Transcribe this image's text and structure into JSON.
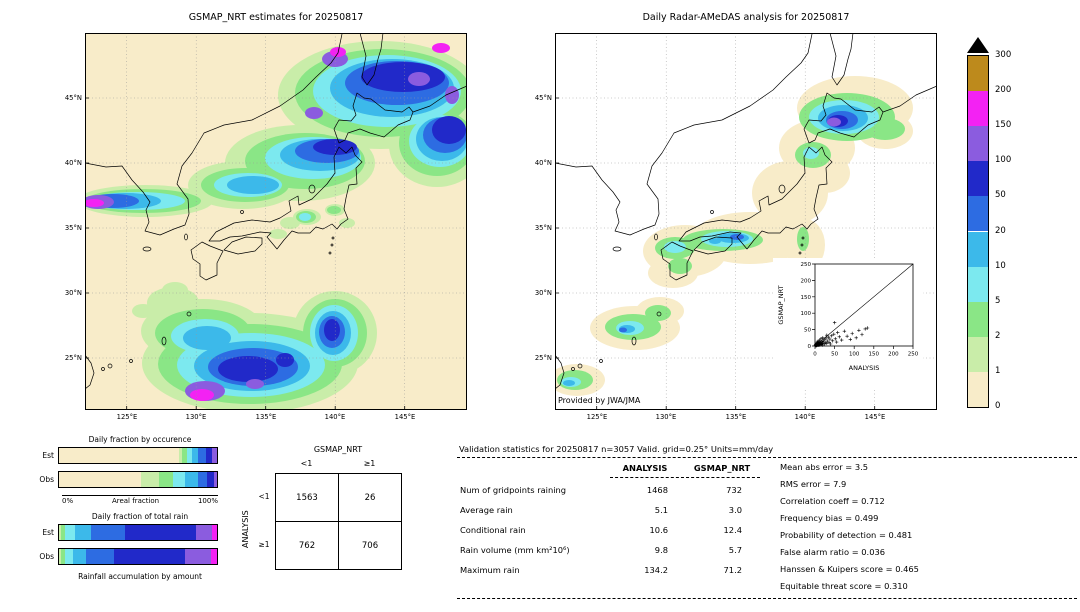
{
  "left_map": {
    "title": "GSMAP_NRT estimates for 20250817",
    "lat_ticks": [
      "45°N",
      "40°N",
      "35°N",
      "30°N",
      "25°N"
    ],
    "lon_ticks": [
      "125°E",
      "130°E",
      "135°E",
      "140°E",
      "145°E"
    ]
  },
  "right_map": {
    "title": "Daily Radar-AMeDAS analysis for 20250817",
    "credit": "Provided by JWA/JMA",
    "lat_ticks": [
      "45°N",
      "40°N",
      "35°N",
      "30°N",
      "25°N"
    ],
    "lon_ticks": [
      "125°E",
      "130°E",
      "135°E",
      "140°E",
      "145°E"
    ],
    "inset": {
      "xlabel": "ANALYSIS",
      "ylabel": "GSMAP_NRT",
      "ticks": [
        0,
        50,
        100,
        150,
        200,
        250
      ],
      "axis_max": 250
    }
  },
  "colorbar": {
    "units": "mm/day",
    "tick_labels": [
      "300",
      "200",
      "150",
      "100",
      "50",
      "20",
      "10",
      "5",
      "2",
      "1",
      "0"
    ],
    "colors_top_to_bottom": [
      "#bd8a1c",
      "#f322f3",
      "#8b5cdf",
      "#2129c9",
      "#2d6ce2",
      "#3cb9ea",
      "#7ce9ef",
      "#8ae686",
      "#c9eda9",
      "#f8ecc9"
    ],
    "overflow_color": "#000000"
  },
  "occurrence_chart": {
    "title": "Daily fraction by occurence",
    "xlabel": "Areal fraction",
    "x0_label": "0%",
    "x100_label": "100%",
    "segment_colors": [
      "#f8ecc9",
      "#c9eda9",
      "#8ae686",
      "#7ce9ef",
      "#3cb9ea",
      "#2d6ce2",
      "#2129c9",
      "#8b5cdf"
    ],
    "rows": [
      {
        "label": "Est",
        "segments": [
          76,
          2,
          3,
          3,
          4,
          5,
          4,
          3
        ]
      },
      {
        "label": "Obs",
        "segments": [
          52,
          11,
          9,
          8,
          8,
          6,
          4,
          2
        ]
      }
    ]
  },
  "totalrain_chart": {
    "title": "Daily fraction of total rain",
    "footer": "Rainfall accumulation by amount",
    "segment_colors": [
      "#c9eda9",
      "#8ae686",
      "#7ce9ef",
      "#3cb9ea",
      "#2d6ce2",
      "#2129c9",
      "#8b5cdf",
      "#f322f3"
    ],
    "rows": [
      {
        "label": "Est",
        "segments": [
          1,
          3,
          6,
          10,
          22,
          45,
          10,
          3
        ]
      },
      {
        "label": "Obs",
        "segments": [
          1,
          3,
          5,
          8,
          18,
          45,
          16,
          4
        ]
      }
    ]
  },
  "contingency": {
    "col_group": "GSMAP_NRT",
    "row_group": "ANALYSIS",
    "col_labels": [
      "<1",
      "≥1"
    ],
    "row_labels": [
      "<1",
      "≥1"
    ],
    "cells": [
      [
        "1563",
        "26"
      ],
      [
        "762",
        "706"
      ]
    ]
  },
  "validation": {
    "title": "Validation statistics for 20250817  n=3057 Valid. grid=0.25° Units=mm/day",
    "col_headers": [
      "ANALYSIS",
      "GSMAP_NRT"
    ],
    "rows": [
      {
        "label": "Num of gridpoints raining",
        "analysis": "1468",
        "gsmap": "732"
      },
      {
        "label": "Average rain",
        "analysis": "5.1",
        "gsmap": "3.0"
      },
      {
        "label": "Conditional rain",
        "analysis": "10.6",
        "gsmap": "12.4"
      },
      {
        "label": "Rain volume (mm km²10⁶)",
        "analysis": "9.8",
        "gsmap": "5.7"
      },
      {
        "label": "Maximum rain",
        "analysis": "134.2",
        "gsmap": "71.2"
      }
    ],
    "stats": [
      "Mean abs error =  3.5",
      "RMS error =  7.9",
      "Correlation coeff =  0.712",
      "Frequency bias =  0.499",
      "Probability of detection =  0.481",
      "False alarm ratio =  0.036",
      "Hanssen & Kuipers score =  0.465",
      "Equitable threat score =  0.310"
    ]
  },
  "chart_data": [
    {
      "type": "heatmap",
      "title": "GSMAP_NRT estimates for 20250817",
      "xlabel": "longitude",
      "ylabel": "latitude",
      "x_ticks": [
        "125°E",
        "130°E",
        "135°E",
        "140°E",
        "145°E"
      ],
      "y_ticks": [
        "45°N",
        "40°N",
        "35°N",
        "30°N",
        "25°N"
      ],
      "units": "mm/day",
      "levels": [
        0,
        1,
        2,
        5,
        10,
        20,
        50,
        100,
        150,
        200,
        300
      ],
      "level_colors_low_to_high": [
        "#f8ecc9",
        "#c9eda9",
        "#8ae686",
        "#7ce9ef",
        "#3cb9ea",
        "#2d6ce2",
        "#2129c9",
        "#8b5cdf",
        "#f322f3",
        "#bd8a1c"
      ],
      "overflow_color": "#000000"
    },
    {
      "type": "heatmap",
      "title": "Daily Radar-AMeDAS analysis for 20250817",
      "xlabel": "longitude",
      "ylabel": "latitude",
      "x_ticks": [
        "125°E",
        "130°E",
        "135°E",
        "140°E",
        "145°E"
      ],
      "y_ticks": [
        "45°N",
        "40°N",
        "35°N",
        "30°N",
        "25°N"
      ],
      "units": "mm/day",
      "levels": [
        0,
        1,
        2,
        5,
        10,
        20,
        50,
        100,
        150,
        200,
        300
      ],
      "level_colors_low_to_high": [
        "#f8ecc9",
        "#c9eda9",
        "#8ae686",
        "#7ce9ef",
        "#3cb9ea",
        "#2d6ce2",
        "#2129c9",
        "#8b5cdf",
        "#f322f3",
        "#bd8a1c"
      ],
      "annotation": "Provided by JWA/JMA"
    },
    {
      "type": "scatter",
      "xlabel": "ANALYSIS",
      "ylabel": "GSMAP_NRT",
      "xlim": [
        0,
        250
      ],
      "ylim": [
        0,
        250
      ],
      "ref_line": "y = x",
      "points": [
        [
          1,
          1
        ],
        [
          1,
          3
        ],
        [
          2,
          1
        ],
        [
          2,
          5
        ],
        [
          3,
          2
        ],
        [
          3,
          7
        ],
        [
          4,
          1
        ],
        [
          4,
          4
        ],
        [
          5,
          2
        ],
        [
          5,
          9
        ],
        [
          6,
          4
        ],
        [
          6,
          12
        ],
        [
          7,
          3
        ],
        [
          8,
          6
        ],
        [
          8,
          15
        ],
        [
          9,
          2
        ],
        [
          10,
          5
        ],
        [
          10,
          11
        ],
        [
          11,
          8
        ],
        [
          12,
          3
        ],
        [
          12,
          18
        ],
        [
          13,
          7
        ],
        [
          14,
          11
        ],
        [
          15,
          4
        ],
        [
          15,
          22
        ],
        [
          16,
          9
        ],
        [
          17,
          6
        ],
        [
          18,
          13
        ],
        [
          19,
          3
        ],
        [
          20,
          8
        ],
        [
          20,
          25
        ],
        [
          22,
          15
        ],
        [
          24,
          6
        ],
        [
          25,
          19
        ],
        [
          26,
          10
        ],
        [
          28,
          24
        ],
        [
          30,
          8
        ],
        [
          30,
          33
        ],
        [
          32,
          15
        ],
        [
          34,
          27
        ],
        [
          36,
          11
        ],
        [
          38,
          21
        ],
        [
          40,
          6
        ],
        [
          42,
          31
        ],
        [
          45,
          16
        ],
        [
          48,
          36
        ],
        [
          50,
          71
        ],
        [
          52,
          22
        ],
        [
          55,
          12
        ],
        [
          58,
          41
        ],
        [
          62,
          28
        ],
        [
          68,
          18
        ],
        [
          75,
          45
        ],
        [
          82,
          30
        ],
        [
          90,
          20
        ],
        [
          95,
          38
        ],
        [
          105,
          25
        ],
        [
          112,
          48
        ],
        [
          120,
          35
        ],
        [
          128,
          52
        ],
        [
          134,
          55
        ]
      ]
    },
    {
      "type": "bar",
      "stacked": true,
      "horizontal": true,
      "title": "Daily fraction by occurence",
      "xlabel": "Areal fraction",
      "xlim_labels": [
        "0%",
        "100%"
      ],
      "categories": [
        "Est",
        "Obs"
      ],
      "series_percent": [
        [
          76,
          2,
          3,
          3,
          4,
          5,
          4,
          3
        ],
        [
          52,
          11,
          9,
          8,
          8,
          6,
          4,
          2
        ]
      ],
      "colors": [
        "#f8ecc9",
        "#c9eda9",
        "#8ae686",
        "#7ce9ef",
        "#3cb9ea",
        "#2d6ce2",
        "#2129c9",
        "#8b5cdf"
      ]
    },
    {
      "type": "bar",
      "stacked": true,
      "horizontal": true,
      "title": "Daily fraction of total rain",
      "xlabel": "Rainfall accumulation by amount",
      "categories": [
        "Est",
        "Obs"
      ],
      "series_percent": [
        [
          1,
          3,
          6,
          10,
          22,
          45,
          10,
          3
        ],
        [
          1,
          3,
          5,
          8,
          18,
          45,
          16,
          4
        ]
      ],
      "colors": [
        "#c9eda9",
        "#8ae686",
        "#7ce9ef",
        "#3cb9ea",
        "#2d6ce2",
        "#2129c9",
        "#8b5cdf",
        "#f322f3"
      ]
    },
    {
      "type": "table",
      "col_group": "GSMAP_NRT",
      "row_group": "ANALYSIS",
      "col_labels": [
        "<1",
        "≥1"
      ],
      "row_labels": [
        "<1",
        "≥1"
      ],
      "values": [
        [
          1563,
          26
        ],
        [
          762,
          706
        ]
      ]
    },
    {
      "type": "table",
      "title": "Validation statistics for 20250817  n=3057 Valid. grid=0.25° Units=mm/day",
      "columns": [
        "ANALYSIS",
        "GSMAP_NRT"
      ],
      "rows": [
        {
          "label": "Num of gridpoints raining",
          "ANALYSIS": 1468,
          "GSMAP_NRT": 732
        },
        {
          "label": "Average rain",
          "ANALYSIS": 5.1,
          "GSMAP_NRT": 3.0
        },
        {
          "label": "Conditional rain",
          "ANALYSIS": 10.6,
          "GSMAP_NRT": 12.4
        },
        {
          "label": "Rain volume (mm km²10⁶)",
          "ANALYSIS": 9.8,
          "GSMAP_NRT": 5.7
        },
        {
          "label": "Maximum rain",
          "ANALYSIS": 134.2,
          "GSMAP_NRT": 71.2
        }
      ],
      "stats": [
        {
          "metric": "Mean abs error",
          "value": 3.5
        },
        {
          "metric": "RMS error",
          "value": 7.9
        },
        {
          "metric": "Correlation coeff",
          "value": 0.712
        },
        {
          "metric": "Frequency bias",
          "value": 0.499
        },
        {
          "metric": "Probability of detection",
          "value": 0.481
        },
        {
          "metric": "False alarm ratio",
          "value": 0.036
        },
        {
          "metric": "Hanssen & Kuipers score",
          "value": 0.465
        },
        {
          "metric": "Equitable threat score",
          "value": 0.31
        }
      ]
    }
  ]
}
